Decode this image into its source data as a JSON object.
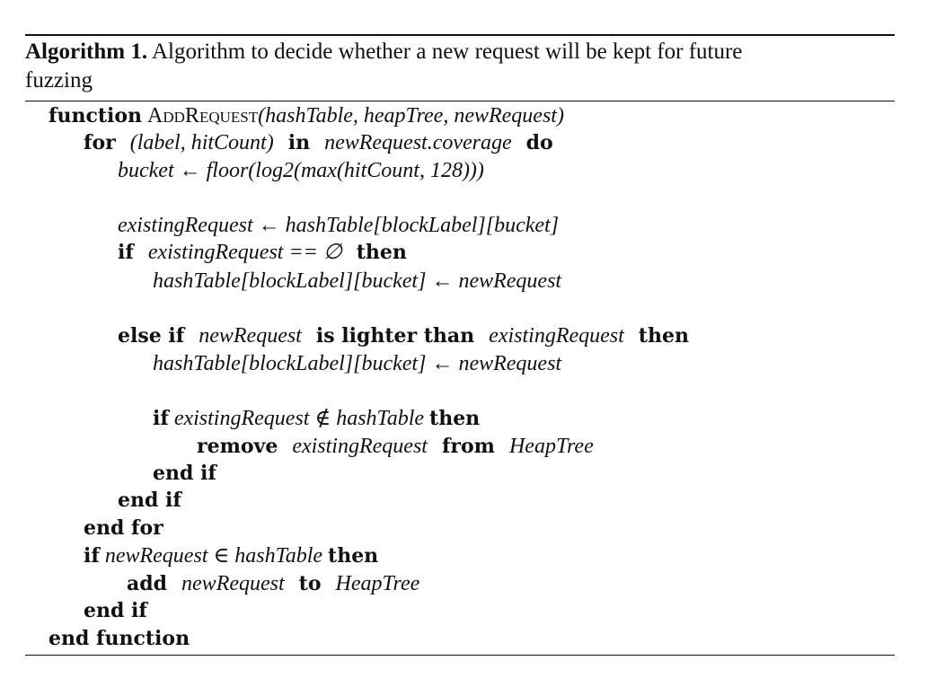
{
  "caption": {
    "label": "Algorithm 1.",
    "text_line1": "Algorithm to decide whether a new request will be kept for future",
    "text_line2": "fuzzing"
  },
  "lines": {
    "l1": {
      "kw1": "function",
      "name": "AddRequest",
      "args": "(hashTable, heapTree, newRequest)"
    },
    "l2": {
      "kw1": "for",
      "expr": "(label, hitCount)",
      "kw2": "in",
      "expr2": "newRequest.coverage",
      "kw3": "do"
    },
    "l3": {
      "lhs": "bucket",
      "arrow": "←",
      "rhs": "floor(log2(max(hitCount, 128)))"
    },
    "l4": {
      "lhs": "existingRequest",
      "arrow": "←",
      "rhs": "hashTable[blockLabel][bucket]"
    },
    "l5": {
      "kw1": "if",
      "expr": "existingRequest == ∅",
      "kw2": "then"
    },
    "l6": {
      "lhs": "hashTable[blockLabel][bucket]",
      "arrow": "←",
      "rhs": "newRequest"
    },
    "l7": {
      "kw1": "else if",
      "expr": "newRequest",
      "kw2": "is lighter than",
      "expr2": "existingRequest",
      "kw3": "then"
    },
    "l8": {
      "lhs": "hashTable[blockLabel][bucket]",
      "arrow": "←",
      "rhs": "newRequest"
    },
    "l9": {
      "kw1": "if",
      "expr": "existingRequest ∉ hashTable",
      "kw2": "then"
    },
    "l10": {
      "kw1": "remove",
      "expr": "existingRequest",
      "kw2": "from",
      "expr2": "HeapTree"
    },
    "l11": {
      "kw1": "end if"
    },
    "l12": {
      "kw1": "end if"
    },
    "l13": {
      "kw1": "end for"
    },
    "l14": {
      "kw1": "if",
      "expr": "newRequest ∈ hashTable",
      "kw2": "then"
    },
    "l15": {
      "kw1": "add",
      "expr": "newRequest",
      "kw2": "to",
      "expr2": "HeapTree"
    },
    "l16": {
      "kw1": "end if"
    },
    "l17": {
      "kw1": "end function"
    }
  }
}
